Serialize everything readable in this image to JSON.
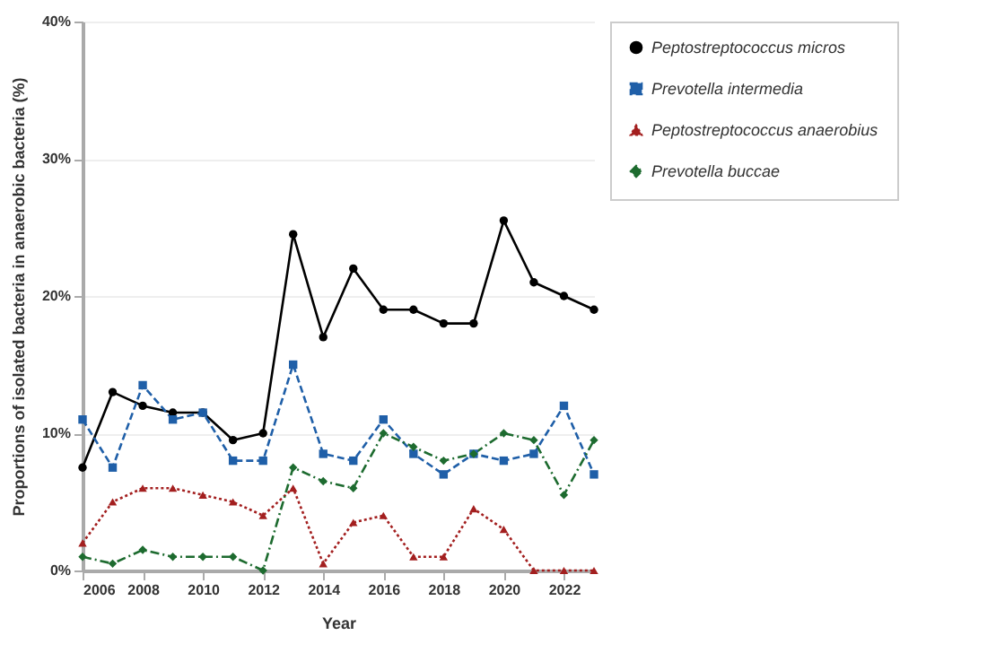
{
  "chart_data": {
    "type": "line",
    "xlabel": "Year",
    "ylabel": "Proportions of isolated bacteria in anaerobic bacteria (%)",
    "x": [
      2006,
      2007,
      2008,
      2009,
      2010,
      2011,
      2012,
      2013,
      2014,
      2015,
      2016,
      2017,
      2018,
      2019,
      2020,
      2021,
      2022,
      2023
    ],
    "xlim": [
      2006,
      2023
    ],
    "xticks": [
      2006,
      2008,
      2010,
      2012,
      2014,
      2016,
      2018,
      2020,
      2022
    ],
    "ylim": [
      0,
      40
    ],
    "yticks": [
      {
        "value": 0,
        "label": "0%"
      },
      {
        "value": 10,
        "label": "10%"
      },
      {
        "value": 20,
        "label": "20%"
      },
      {
        "value": 30,
        "label": "30%"
      },
      {
        "value": 40,
        "label": "40%"
      }
    ],
    "grid": "y",
    "legend": "top right",
    "series": [
      {
        "name": "Peptostreptococcus micros",
        "color": "#000000",
        "marker": "circle",
        "line_style": "solid",
        "values": [
          7.5,
          13,
          12,
          11.5,
          11.5,
          9.5,
          10,
          24.5,
          17,
          22,
          19,
          19,
          18,
          18,
          25.5,
          21,
          20,
          19
        ]
      },
      {
        "name": "Prevotella intermedia",
        "color": "#1f5fa8",
        "marker": "square",
        "line_style": "dashed",
        "values": [
          11,
          7.5,
          13.5,
          11,
          11.5,
          8,
          8,
          15,
          8.5,
          8,
          11,
          8.5,
          7,
          8.5,
          8,
          8.5,
          12,
          7
        ]
      },
      {
        "name": "Peptostreptococcus anaerobius",
        "color": "#a31f1f",
        "marker": "triangle",
        "line_style": "dotted",
        "values": [
          2,
          5,
          6,
          6,
          5.5,
          5,
          4,
          6,
          0.5,
          3.5,
          4,
          1,
          1,
          4.5,
          3,
          0,
          0,
          0
        ]
      },
      {
        "name": "Prevotella buccae",
        "color": "#1d6b2f",
        "marker": "diamond",
        "line_style": "dashdot",
        "values": [
          1,
          0.5,
          1.5,
          1,
          1,
          1,
          0,
          7.5,
          6.5,
          6,
          10,
          9,
          8,
          8.5,
          10,
          9.5,
          5.5,
          9.5
        ]
      }
    ]
  }
}
